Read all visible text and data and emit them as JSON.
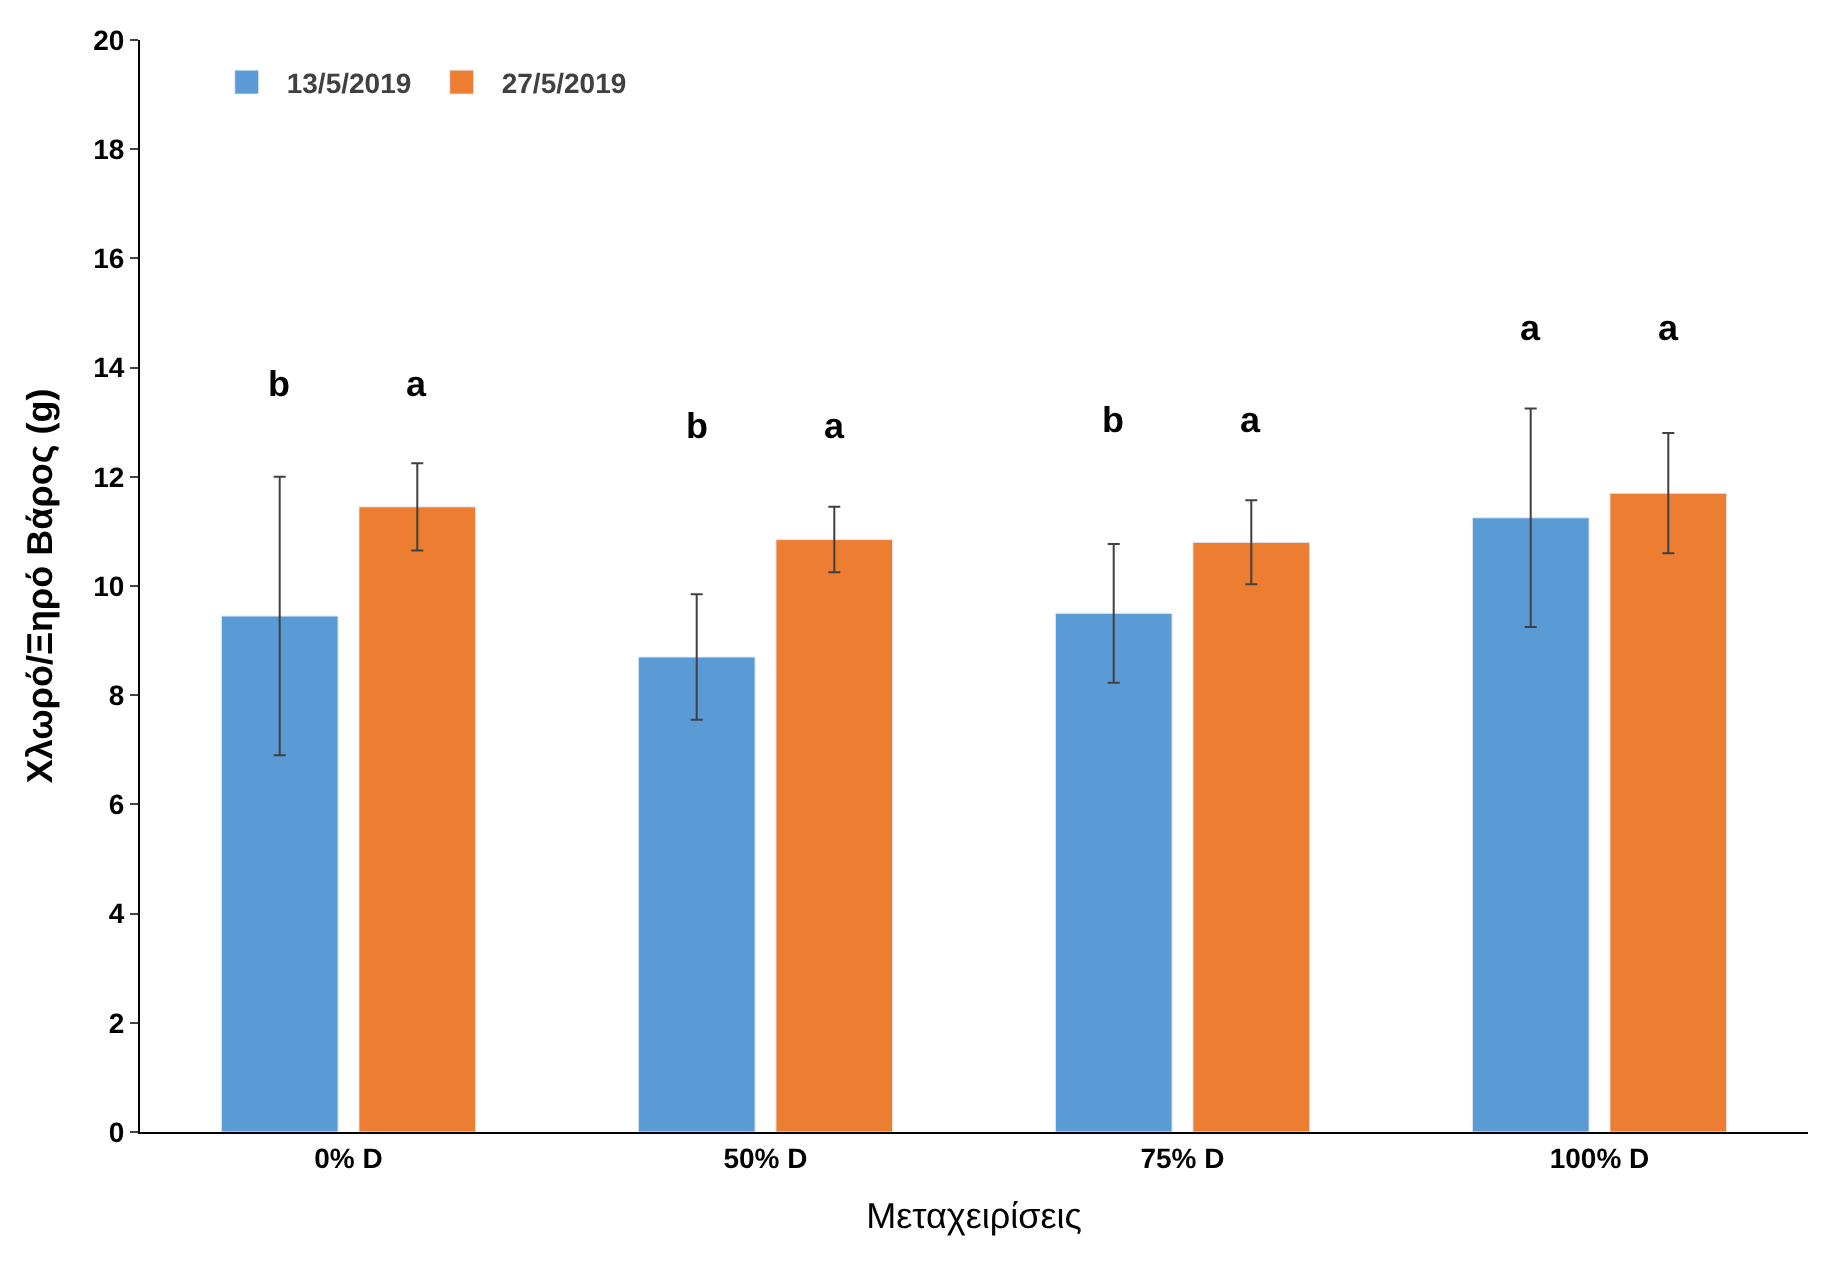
{
  "chart_data": {
    "type": "bar",
    "xlabel": "Μεταχειρίσεις",
    "ylabel": "Χλωρό/Ξηρό Βάρος (g)",
    "categories": [
      "0% D",
      "50% D",
      "75% D",
      "100% D"
    ],
    "series": [
      {
        "name": "13/5/2019",
        "color": "#5b9bd5",
        "values": [
          9.45,
          8.7,
          9.5,
          11.25
        ],
        "errors": [
          2.55,
          1.15,
          1.27,
          2.0
        ]
      },
      {
        "name": "27/5/2019",
        "color": "#ed7d31",
        "values": [
          11.45,
          10.85,
          10.8,
          11.7
        ],
        "errors": [
          0.8,
          0.6,
          0.77,
          1.1
        ]
      }
    ],
    "annotations": [
      "b",
      "a",
      "b",
      "a",
      "b",
      "a",
      "a",
      "a"
    ],
    "ylim": [
      0,
      20
    ],
    "yticks": [
      0,
      2,
      4,
      6,
      8,
      10,
      12,
      14,
      16,
      18,
      20
    ],
    "legend": "top left"
  }
}
